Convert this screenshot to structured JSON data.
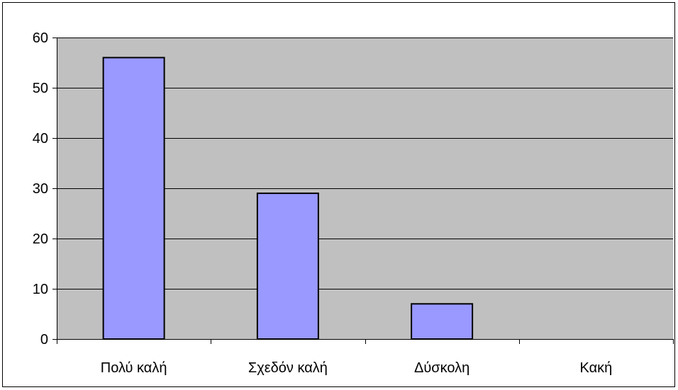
{
  "chart_data": {
    "type": "bar",
    "categories": [
      "Πολύ καλή",
      "Σχεδόν καλή",
      "Δύσκολη",
      "Κακή"
    ],
    "values": [
      56,
      29,
      7,
      0
    ],
    "title": "",
    "xlabel": "",
    "ylabel": "",
    "ylim": [
      0,
      60
    ],
    "yticks": [
      0,
      10,
      20,
      30,
      40,
      50,
      60
    ],
    "grid": true,
    "legend": "none",
    "colors": {
      "bar_fill": "#9999ff",
      "bar_stroke": "#000000",
      "plot_background": "#c0c0c0",
      "gridline": "#000000"
    }
  }
}
